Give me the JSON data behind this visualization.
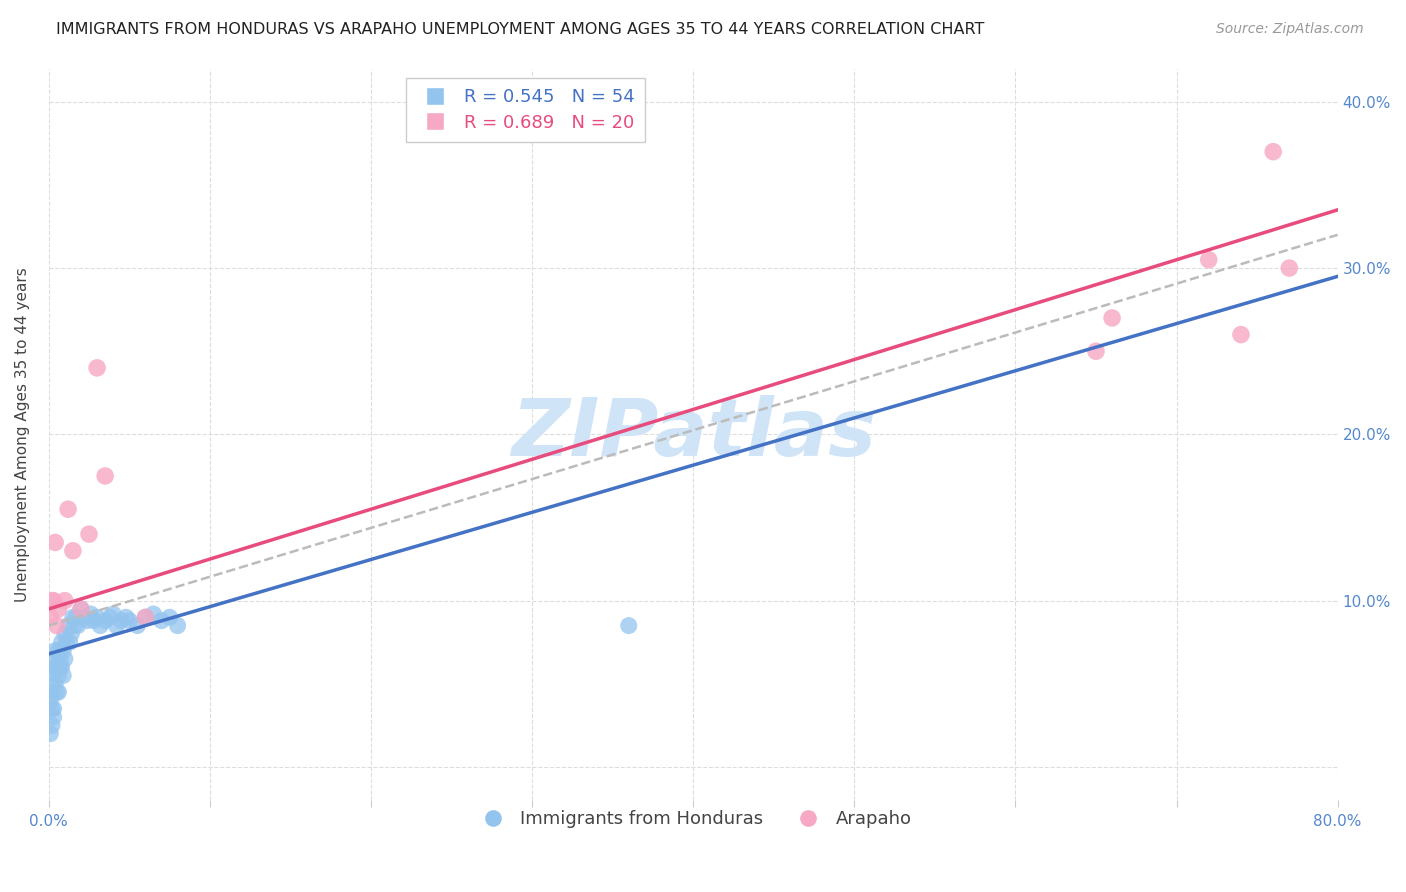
{
  "title": "IMMIGRANTS FROM HONDURAS VS ARAPAHO UNEMPLOYMENT AMONG AGES 35 TO 44 YEARS CORRELATION CHART",
  "source": "Source: ZipAtlas.com",
  "ylabel": "Unemployment Among Ages 35 to 44 years",
  "xlim": [
    0.0,
    0.8
  ],
  "ylim": [
    -0.02,
    0.42
  ],
  "xticks": [
    0.0,
    0.1,
    0.2,
    0.3,
    0.4,
    0.5,
    0.6,
    0.7,
    0.8
  ],
  "xticklabels": [
    "0.0%",
    "",
    "",
    "",
    "",
    "",
    "",
    "",
    "80.0%"
  ],
  "yticks": [
    0.0,
    0.1,
    0.2,
    0.3,
    0.4
  ],
  "yticklabels_right": [
    "",
    "10.0%",
    "20.0%",
    "30.0%",
    "40.0%"
  ],
  "blue_R": 0.545,
  "blue_N": 54,
  "pink_R": 0.689,
  "pink_N": 20,
  "blue_color": "#93C4EE",
  "pink_color": "#F7A8C4",
  "blue_line_color": "#4472C4",
  "pink_line_color": "#E84C7D",
  "dashed_line_color": "#BBBBBB",
  "watermark": "ZIPatlas",
  "watermark_color": "#D0E4F7",
  "legend_label_blue": "Immigrants from Honduras",
  "legend_label_pink": "Arapaho",
  "blue_points_x": [
    0.001,
    0.001,
    0.002,
    0.002,
    0.002,
    0.003,
    0.003,
    0.003,
    0.003,
    0.004,
    0.004,
    0.004,
    0.005,
    0.005,
    0.006,
    0.006,
    0.006,
    0.007,
    0.007,
    0.008,
    0.008,
    0.009,
    0.009,
    0.01,
    0.01,
    0.011,
    0.012,
    0.013,
    0.014,
    0.015,
    0.016,
    0.017,
    0.018,
    0.02,
    0.022,
    0.024,
    0.026,
    0.028,
    0.03,
    0.032,
    0.035,
    0.038,
    0.04,
    0.042,
    0.045,
    0.048,
    0.05,
    0.055,
    0.06,
    0.065,
    0.07,
    0.075,
    0.08,
    0.36
  ],
  "blue_points_y": [
    0.04,
    0.02,
    0.035,
    0.045,
    0.025,
    0.055,
    0.06,
    0.035,
    0.03,
    0.065,
    0.05,
    0.07,
    0.06,
    0.045,
    0.07,
    0.055,
    0.045,
    0.065,
    0.06,
    0.075,
    0.06,
    0.07,
    0.055,
    0.08,
    0.065,
    0.075,
    0.085,
    0.075,
    0.08,
    0.09,
    0.085,
    0.09,
    0.085,
    0.095,
    0.09,
    0.088,
    0.092,
    0.088,
    0.09,
    0.085,
    0.088,
    0.09,
    0.092,
    0.085,
    0.088,
    0.09,
    0.088,
    0.085,
    0.09,
    0.092,
    0.088,
    0.09,
    0.085,
    0.085
  ],
  "pink_points_x": [
    0.001,
    0.002,
    0.003,
    0.004,
    0.005,
    0.006,
    0.01,
    0.012,
    0.015,
    0.02,
    0.025,
    0.03,
    0.035,
    0.06,
    0.65,
    0.66,
    0.72,
    0.74,
    0.76,
    0.77
  ],
  "pink_points_y": [
    0.09,
    0.1,
    0.1,
    0.135,
    0.085,
    0.095,
    0.1,
    0.155,
    0.13,
    0.095,
    0.14,
    0.24,
    0.175,
    0.09,
    0.25,
    0.27,
    0.305,
    0.26,
    0.37,
    0.3
  ],
  "blue_line_x": [
    0.0,
    0.8
  ],
  "blue_line_y": [
    0.068,
    0.295
  ],
  "pink_line_x": [
    0.0,
    0.8
  ],
  "pink_line_y": [
    0.095,
    0.335
  ],
  "dashed_line_x": [
    0.0,
    0.8
  ],
  "dashed_line_y": [
    0.085,
    0.32
  ],
  "background_color": "#FFFFFF",
  "grid_color": "#DDDDDD",
  "tick_color": "#5588CC",
  "title_fontsize": 11.5,
  "source_fontsize": 10,
  "axis_label_fontsize": 11,
  "tick_fontsize": 11,
  "legend_fontsize": 13
}
